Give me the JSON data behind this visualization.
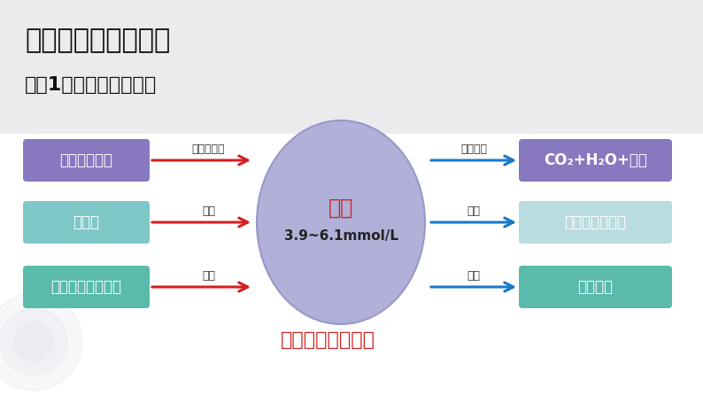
{
  "title1": "一、激素调节的实例",
  "title2": "实例1：血糖平衡的调节",
  "subtitle": "血糖的来源和去向",
  "center_text1": "血糖",
  "center_text2": "3.9~6.1mmol/L",
  "left_boxes": [
    "食物中的糖类",
    "肝糖原",
    "脂肪酸等非糖物质"
  ],
  "right_boxes": [
    "CO₂+H₂O+能量",
    "肝糖原、肌糖原",
    "甘油三酯"
  ],
  "left_labels": [
    "消化、吸收",
    "分解",
    "转化"
  ],
  "right_labels": [
    "氧化分解",
    "合成",
    "转化"
  ],
  "left_box_color": "#8B7EC8",
  "right_box_colors": [
    "#8B7EC8",
    "#A8D8D8",
    "#5BBCBC"
  ],
  "center_ellipse_color": "#B0B0D8",
  "center_ellipse_edge": "#9898C8",
  "bg_top_color": "#F0F0F2",
  "bg_bottom_color": "#FFFFFF",
  "arrow_color_left": "#D42020",
  "arrow_color_right": "#1878C8",
  "title1_color": "#111111",
  "title2_color": "#111111",
  "subtitle_color": "#D42020",
  "center_text_color": "#D42020",
  "center_text2_color": "#222222",
  "box_text_color": "#FFFFFF",
  "label_color": "#333333",
  "title_bg_color": "#EBEBEE"
}
